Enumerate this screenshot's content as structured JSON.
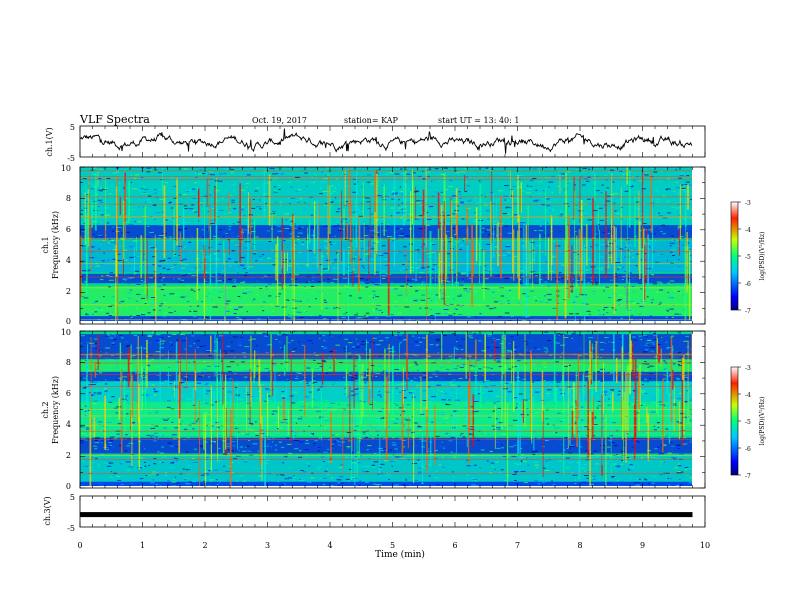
{
  "header": {
    "title": "VLF Spectra",
    "date": "Oct. 19, 2017",
    "station": "station= KAP",
    "start": "start  UT =   13: 40: 1"
  },
  "chart_data": [
    {
      "type": "line",
      "ylabel": "ch.1(V)",
      "ylim": [
        -5,
        5
      ],
      "yticks": [
        "5",
        "-5"
      ],
      "xlim": [
        0,
        10
      ],
      "description_series": "waveform",
      "x_range": [
        0,
        9.8
      ]
    },
    {
      "type": "heatmap",
      "ylabel": "ch.1",
      "ylabel2": "Frequency (kHz)",
      "ylim": [
        0,
        10
      ],
      "yticks": [
        "0",
        "2",
        "4",
        "6",
        "8",
        "10"
      ],
      "xlim": [
        0,
        10
      ],
      "colorbar": {
        "label": "log(PSD)(V²/Hz)",
        "range": [
          -7,
          -3
        ],
        "ticks": [
          "-3",
          "-4",
          "-5",
          "-6",
          "-7"
        ]
      },
      "dark_bands_khz": [
        [
          2.6,
          3.2
        ],
        [
          5.4,
          6.3
        ]
      ]
    },
    {
      "type": "heatmap",
      "ylabel": "ch.2",
      "ylabel2": "Frequency (kHz)",
      "ylim": [
        0,
        10
      ],
      "yticks": [
        "0",
        "2",
        "4",
        "6",
        "8",
        "10"
      ],
      "xlim": [
        0,
        10
      ],
      "colorbar": {
        "label": "log(PSD)(V²/Hz)",
        "range": [
          -7,
          -3
        ],
        "ticks": [
          "-3",
          "-4",
          "-5",
          "-6",
          "-7"
        ]
      },
      "dark_bands_khz": [
        [
          2.2,
          3.2
        ],
        [
          6.8,
          7.4
        ],
        [
          8.2,
          9.8
        ]
      ]
    },
    {
      "type": "line",
      "ylabel": "ch.3(V)",
      "ylim": [
        -5,
        5
      ],
      "yticks": [
        "5",
        "-5"
      ],
      "xlim": [
        0,
        10
      ],
      "constant_value": -1,
      "x_range": [
        0,
        9.8
      ]
    }
  ],
  "xaxis": {
    "label": "Time (min)",
    "ticks": [
      "0",
      "1",
      "2",
      "3",
      "4",
      "5",
      "6",
      "7",
      "8",
      "9",
      "10"
    ]
  },
  "colors": {
    "spectrum_low": "#000080",
    "spectrum_mid": "#00ff80",
    "spectrum_high": "#ff0000"
  }
}
